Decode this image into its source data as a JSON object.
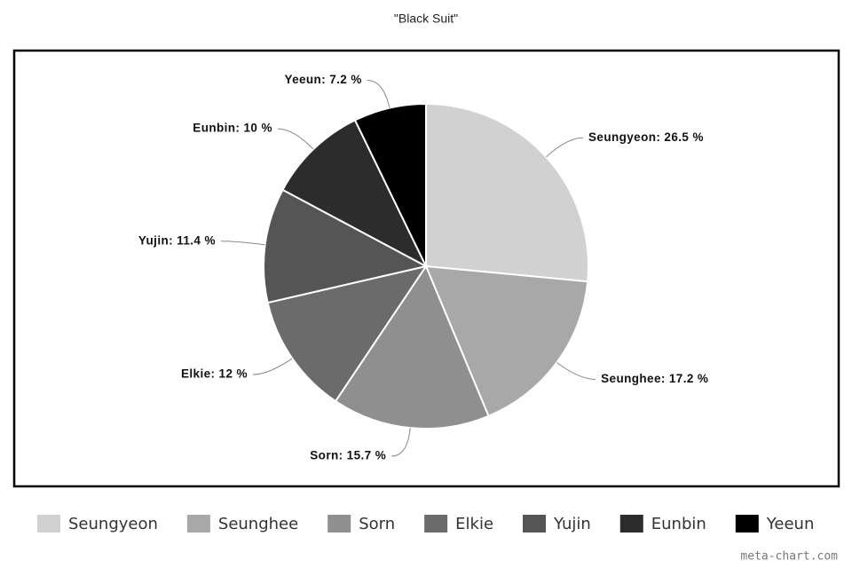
{
  "chart_data": {
    "type": "pie",
    "title": "\"Black Suit\"",
    "categories": [
      "Seungyeon",
      "Seunghee",
      "Sorn",
      "Elkie",
      "Yujin",
      "Eunbin",
      "Yeeun"
    ],
    "values": [
      26.5,
      17.2,
      15.7,
      12,
      11.4,
      10,
      7.2
    ],
    "value_labels": [
      "Seungyeon: 26.5 %",
      "Seunghee: 17.2 %",
      "Sorn: 15.7 %",
      "Elkie: 12 %",
      "Yujin: 11.4 %",
      "Eunbin: 10 %",
      "Yeeun: 7.2 %"
    ],
    "colors": [
      "#d1d1d1",
      "#a8a8a8",
      "#8f8f8f",
      "#6b6b6b",
      "#555555",
      "#2c2c2c",
      "#000000"
    ],
    "legend": "bottom"
  },
  "watermark": "meta-chart.com"
}
